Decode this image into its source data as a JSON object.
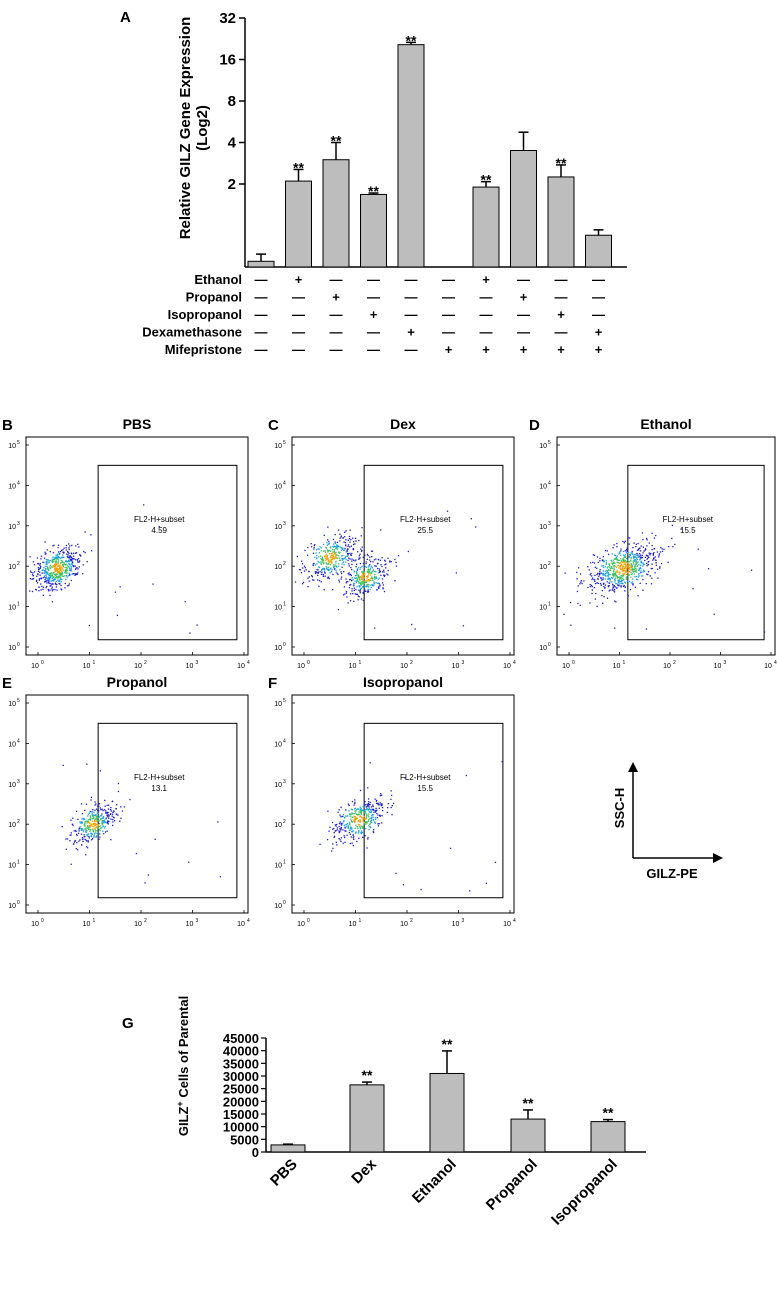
{
  "panel_labels": {
    "a": "A",
    "b": "B",
    "c": "C",
    "d": "D",
    "e": "E",
    "f": "F",
    "g": "G"
  },
  "chart_data": [
    {
      "id": "A",
      "type": "bar",
      "yscale": "log2",
      "ylabel_line1": "Relative GILZ Gene Expression",
      "ylabel_line2": "(Log2)",
      "ylim": [
        0.5,
        32
      ],
      "yticks": [
        "2",
        "4",
        "8",
        "16",
        "32"
      ],
      "ytick_values": [
        2,
        4,
        8,
        16,
        32
      ],
      "values": [
        0.55,
        2.1,
        3.0,
        1.68,
        20.5,
        0.5,
        1.9,
        3.5,
        2.25,
        0.85
      ],
      "errors": [
        0.07,
        0.45,
        1.0,
        0.04,
        0.8,
        0,
        0.18,
        1.25,
        0.5,
        0.08
      ],
      "significance": [
        "",
        "**",
        "**",
        "**",
        "**",
        "",
        "**",
        "",
        "**",
        ""
      ],
      "treatment_rows": [
        {
          "label": "Ethanol",
          "marks": [
            "—",
            "+",
            "—",
            "—",
            "—",
            "—",
            "+",
            "—",
            "—",
            "—"
          ]
        },
        {
          "label": "Propanol",
          "marks": [
            "—",
            "—",
            "+",
            "—",
            "—",
            "—",
            "—",
            "+",
            "—",
            "—"
          ]
        },
        {
          "label": "Isopropanol",
          "marks": [
            "—",
            "—",
            "—",
            "+",
            "—",
            "—",
            "—",
            "—",
            "+",
            "—"
          ]
        },
        {
          "label": "Dexamethasone",
          "marks": [
            "—",
            "—",
            "—",
            "—",
            "+",
            "—",
            "—",
            "—",
            "—",
            "+"
          ]
        },
        {
          "label": "Mifepristone",
          "marks": [
            "—",
            "—",
            "—",
            "—",
            "—",
            "+",
            "+",
            "+",
            "+",
            "+"
          ]
        }
      ]
    },
    {
      "id": "flow",
      "type": "scatter",
      "axis_x": "GILZ-PE",
      "axis_y": "SSC-H",
      "xticks": [
        "10",
        "10",
        "10",
        "10",
        "10"
      ],
      "tick_exponents": [
        "0",
        "1",
        "2",
        "3",
        "4"
      ],
      "yticks": [
        "10",
        "10",
        "10",
        "10",
        "10",
        "10"
      ],
      "ytick_exponents": [
        "0",
        "1",
        "2",
        "3",
        "4",
        "5"
      ],
      "gate_label": "FL2-H+subset",
      "panels": [
        {
          "letter": "B",
          "title": "PBS",
          "gate_value": "4.59"
        },
        {
          "letter": "C",
          "title": "Dex",
          "gate_value": "25.5"
        },
        {
          "letter": "D",
          "title": "Ethanol",
          "gate_value": "15.5"
        },
        {
          "letter": "E",
          "title": "Propanol",
          "gate_value": "13.1"
        },
        {
          "letter": "F",
          "title": "Isopropanol",
          "gate_value": "15.5"
        }
      ]
    },
    {
      "id": "G",
      "type": "bar",
      "ylabel_pre": "GILZ",
      "ylabel_sup": "+",
      "ylabel_post": " Cells of Parental",
      "ylim": [
        0,
        45000
      ],
      "yticks": [
        "0",
        "5000",
        "10000",
        "15000",
        "20000",
        "25000",
        "30000",
        "35000",
        "40000",
        "45000"
      ],
      "categories": [
        "PBS",
        "Dex",
        "Ethanol",
        "Propanol",
        "Isopropanol"
      ],
      "values": [
        2800,
        26500,
        31000,
        13000,
        12000
      ],
      "errors": [
        300,
        1100,
        8900,
        3600,
        800
      ],
      "significance": [
        "",
        "**",
        "**",
        "**",
        "**"
      ]
    }
  ]
}
